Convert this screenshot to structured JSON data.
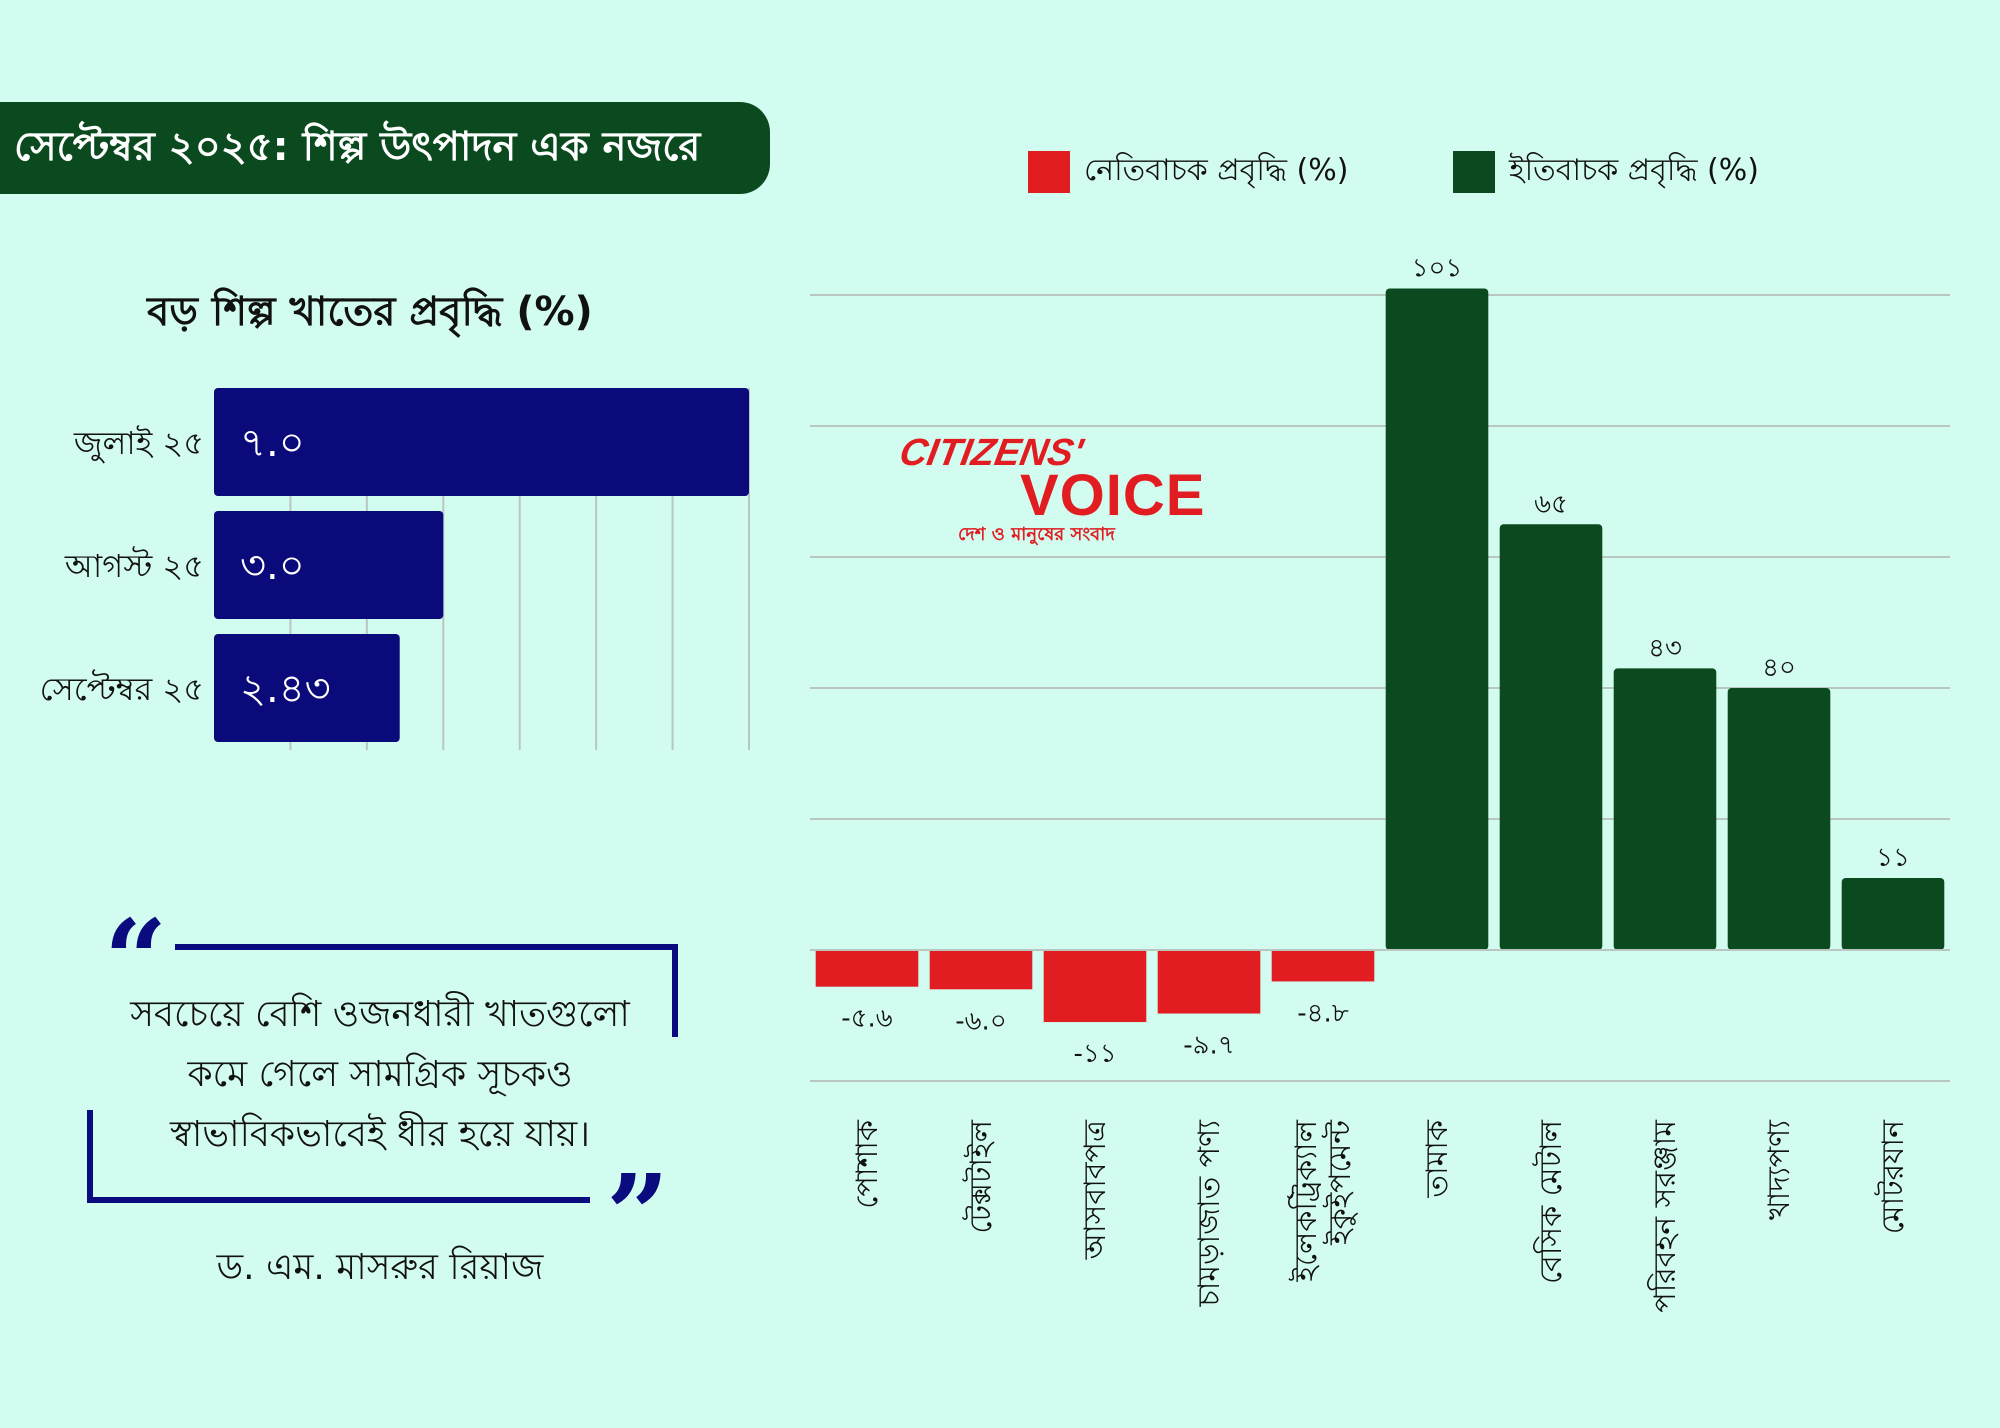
{
  "header": {
    "title": "সেপ্টেম্বর ২০২৫: শিল্প উৎপাদন এক নজরে"
  },
  "logo": {
    "top": "CITIZENS'",
    "main": "VOICE",
    "tagline": "দেশ ও মানুষের সংবাদ"
  },
  "quote": {
    "lines": [
      "সবচেয়ে বেশি ওজনধারী খাতগুলো",
      "কমে গেলে সামগ্রিক সূচকও",
      "স্বাভাবিকভাবেই ধীর হয়ে যায়।"
    ],
    "author": "ড. এম. মাসরুর রিয়াজ"
  },
  "colors": {
    "banner": "#0b4a1f",
    "hbar": "#0a0a7a",
    "negative": "#e11d22",
    "positive": "#0b4a1f",
    "background": "#d2fcef"
  },
  "chart_data": [
    {
      "type": "bar",
      "orientation": "horizontal",
      "title": "বড় শিল্প খাতের প্রবৃদ্ধি (%)",
      "categories": [
        "জুলাই ২৫",
        "আগস্ট ২৫",
        "সেপ্টেম্বর ২৫"
      ],
      "values": [
        7.0,
        3.0,
        2.43
      ],
      "value_labels": [
        "৭.০",
        "৩.০",
        "২.৪৩"
      ],
      "xlim": [
        0,
        7
      ],
      "grid": true
    },
    {
      "type": "bar",
      "categories": [
        [
          "পোশাক"
        ],
        [
          "টেক্সটাইল"
        ],
        [
          "আসবাবপত্র"
        ],
        [
          "চামড়াজাত পণ্য"
        ],
        [
          "ইলেকট্রিক্যাল",
          "ইকুইপমেন্ট"
        ],
        [
          "তামাক"
        ],
        [
          "বেসিক মেটাল"
        ],
        [
          "পরিবহন সরঞ্জাম"
        ],
        [
          "খাদ্যপণ্য"
        ],
        [
          "মোটরযান"
        ]
      ],
      "values": [
        -5.6,
        -6.0,
        -11,
        -9.7,
        -4.8,
        101,
        65,
        43,
        40,
        11
      ],
      "value_labels": [
        "-৫.৬",
        "-৬.০",
        "-১১",
        "-৯.৭",
        "-৪.৮",
        "১০১",
        "৬৫",
        "৪৩",
        "৪০",
        "১১"
      ],
      "legend": [
        {
          "name": "নেতিবাচক প্রবৃদ্ধি  (%)",
          "color": "#e11d22"
        },
        {
          "name": "ইতিবাচক প্রবৃদ্ধি (%)",
          "color": "#0b4a1f"
        }
      ],
      "legend_position": "top",
      "ylim": [
        -20,
        100
      ],
      "grid": true
    }
  ]
}
